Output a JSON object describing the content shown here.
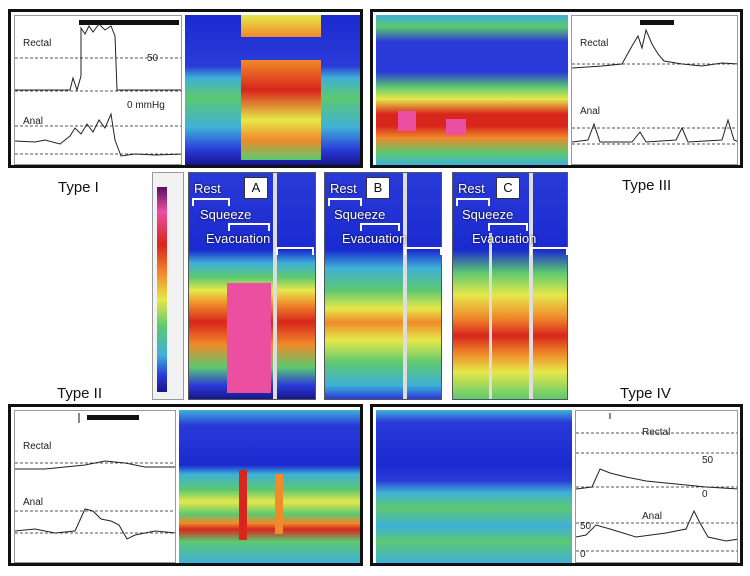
{
  "colors": {
    "deep": "#16168c",
    "blue": "#2a3ad8",
    "cyan": "#3fb0d8",
    "green": "#5cc870",
    "yellow": "#e6e84a",
    "orange": "#f08a2a",
    "red": "#d8261c",
    "magenta": "#ec4fa0",
    "purple": "#5a1060"
  },
  "types": {
    "type1": "Type I",
    "type2": "Type II",
    "type3": "Type III",
    "type4": "Type IV"
  },
  "traces": {
    "rectal": "Rectal",
    "anal": "Anal",
    "fifty": "50",
    "zero_mmhg": "0 mmHg",
    "zero": "0"
  },
  "phases": {
    "rest": "Rest",
    "squeeze": "Squeeze",
    "evacuation": "Evacuation"
  },
  "letters": {
    "a": "A",
    "b": "B",
    "c": "C"
  }
}
